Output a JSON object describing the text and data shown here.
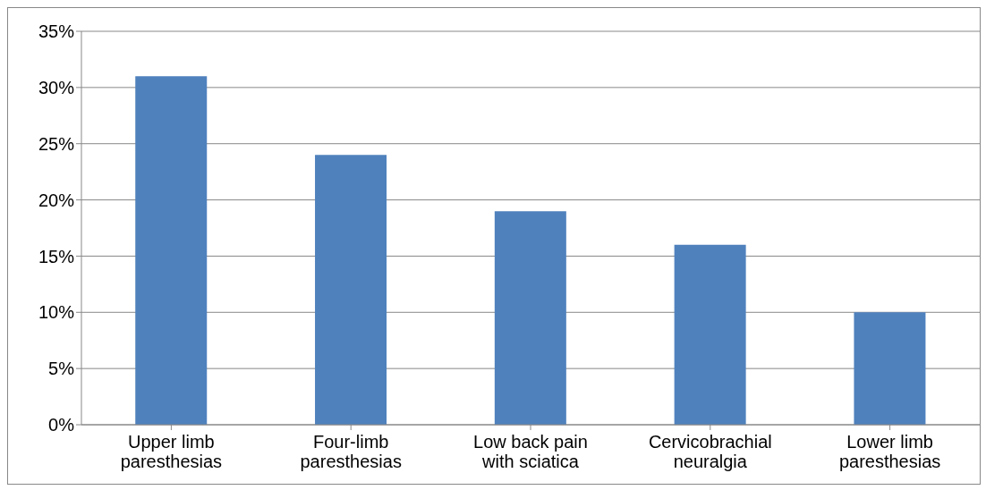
{
  "chart_data": {
    "type": "bar",
    "categories": [
      "Upper limb paresthesias",
      "Four-limb paresthesias",
      "Low back pain with sciatica",
      "Cervicobrachial neuralgia",
      "Lower limb paresthesias"
    ],
    "values": [
      31,
      24,
      19,
      16,
      10
    ],
    "color": "#4f81bd",
    "ylim": [
      0,
      35
    ],
    "yticks": [
      {
        "value": 0,
        "label": "0%"
      },
      {
        "value": 5,
        "label": "5%"
      },
      {
        "value": 10,
        "label": "10%"
      },
      {
        "value": 15,
        "label": "15%"
      },
      {
        "value": 20,
        "label": "20%"
      },
      {
        "value": 25,
        "label": "25%"
      },
      {
        "value": 30,
        "label": "30%"
      },
      {
        "value": 35,
        "label": "35%"
      }
    ],
    "grid": "y"
  }
}
